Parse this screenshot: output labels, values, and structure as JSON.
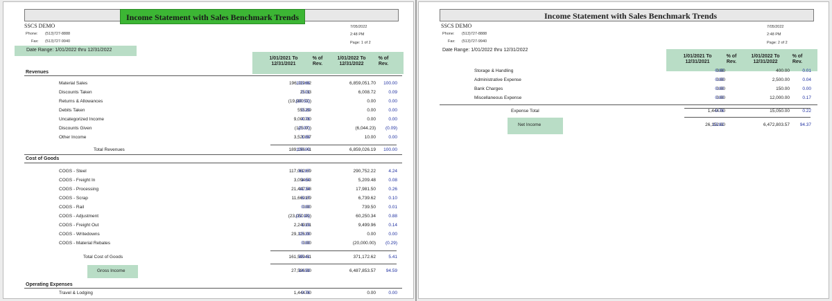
{
  "report": {
    "title": "Income Statement with Sales Benchmark Trends",
    "company": "SSCS DEMO",
    "phone_label": "Phone:",
    "phone": "(513)727-8888",
    "fax_label": "Fax:",
    "fax": "(513)727-9940",
    "date": "7/05/2022",
    "time": "2:48 PM",
    "date_range": "Date Range:  1/01/2022  thru  12/31/2022",
    "col1": "1/01/2021 To\n12/31/2021",
    "col2": "% of\nRev.",
    "col3": "1/01/2022 To\n12/31/2022",
    "col4": "% of\nRev."
  },
  "page1": {
    "page_label": "Page: 1 of 2",
    "revenues_header": "Revenues",
    "revenues": [
      {
        "label": "Material Sales",
        "a": "196,119.62",
        "ap": "103.66",
        "b": "6,859,051.70",
        "bp": "100.00"
      },
      {
        "label": "Discounts Taken",
        "a": "25.33",
        "ap": "0.01",
        "b": "6,008.72",
        "bp": "0.09"
      },
      {
        "label": "Returns & Allowances",
        "a": "(19,900.00)",
        "ap": "(10.52)",
        "b": "0.00",
        "bp": "0.00"
      },
      {
        "label": "Debits Taken",
        "a": "555.89",
        "ap": "0.29",
        "b": "0.00",
        "bp": "0.00"
      },
      {
        "label": "Uncategorized Income",
        "a": "9,000.00",
        "ap": "4.76",
        "b": "0.00",
        "bp": "0.00"
      },
      {
        "label": "Discounts Given",
        "a": "(125.00)",
        "ap": "(0.07)",
        "b": "(6,044.23)",
        "bp": "(0.09)"
      },
      {
        "label": "Other Income",
        "a": "3,520.57",
        "ap": "1.86",
        "b": "10.00",
        "bp": "0.00"
      }
    ],
    "total_revenues": {
      "label": "Total Revenues",
      "a": "189,196.41",
      "ap": "100.00",
      "b": "6,859,026.19",
      "bp": "100.00"
    },
    "cogs_header": "Cost of Goods",
    "cogs": [
      {
        "label": "COGS - Steel",
        "a": "117,062.69",
        "ap": "61.87",
        "b": "290,752.22",
        "bp": "4.24"
      },
      {
        "label": "COGS - Freight In",
        "a": "3,094.53",
        "ap": "1.64",
        "b": "5,209.48",
        "bp": "0.08"
      },
      {
        "label": "COGS - Processing",
        "a": "21,447.58",
        "ap": "11.34",
        "b": "17,981.50",
        "bp": "0.26"
      },
      {
        "label": "COGS - Scrap",
        "a": "11,669.89",
        "ap": "6.17",
        "b": "6,739.62",
        "bp": "0.10"
      },
      {
        "label": "COGS - Rail",
        "a": "0.00",
        "ap": "0.00",
        "b": "739.50",
        "bp": "0.01"
      },
      {
        "label": "COGS - Adjustment",
        "a": "(23,050.09)",
        "ap": "(12.18)",
        "b": "60,250.34",
        "bp": "0.88"
      },
      {
        "label": "COGS - Freight Out",
        "a": "2,249.01",
        "ap": "1.19",
        "b": "9,499.96",
        "bp": "0.14"
      },
      {
        "label": "COGS - Writedowns",
        "a": "29,126.00",
        "ap": "15.39",
        "b": "0.00",
        "bp": "0.00"
      },
      {
        "label": "COGS - Material Rebates",
        "a": "0.00",
        "ap": "0.00",
        "b": "(20,000.00)",
        "bp": "(0.29)"
      }
    ],
    "total_cogs": {
      "label": "Total Cost of Goods",
      "a": "161,599.61",
      "ap": "85.41",
      "b": "371,172.62",
      "bp": "5.41"
    },
    "gross_income": {
      "label": "Gross Income",
      "a": "27,596.80",
      "ap": "14.59",
      "b": "6,487,853.57",
      "bp": "94.59"
    },
    "opex_header": "Operating Expenses",
    "opex": [
      {
        "label": "Travel & Lodging",
        "a": "1,444.00",
        "ap": "0.76",
        "b": "0.00",
        "bp": "0.00"
      }
    ]
  },
  "page2": {
    "page_label": "Page: 2 of 2",
    "rows": [
      {
        "label": "Storage & Handling",
        "a": "0.00",
        "ap": "0.00",
        "b": "400.00",
        "bp": "0.01"
      },
      {
        "label": "Administrative Expense",
        "a": "0.00",
        "ap": "0.00",
        "b": "2,500.00",
        "bp": "0.04"
      },
      {
        "label": "Bank Charges",
        "a": "0.00",
        "ap": "0.00",
        "b": "150.00",
        "bp": "0.00"
      },
      {
        "label": "Miscellaneous Expense",
        "a": "0.00",
        "ap": "0.00",
        "b": "12,000.00",
        "bp": "0.17"
      }
    ],
    "expense_total": {
      "label": "Expense Total",
      "a": "1,444.00",
      "ap": "0.76",
      "b": "15,050.00",
      "bp": "0.22"
    },
    "net_income": {
      "label": "Net Income",
      "a": "26,152.80",
      "ap": "13.82",
      "b": "6,472,803.57",
      "bp": "94.37"
    }
  },
  "colors": {
    "title_highlight": "#3cb634",
    "band": "#b9ddc6",
    "percent_text": "#1e2fa0"
  }
}
